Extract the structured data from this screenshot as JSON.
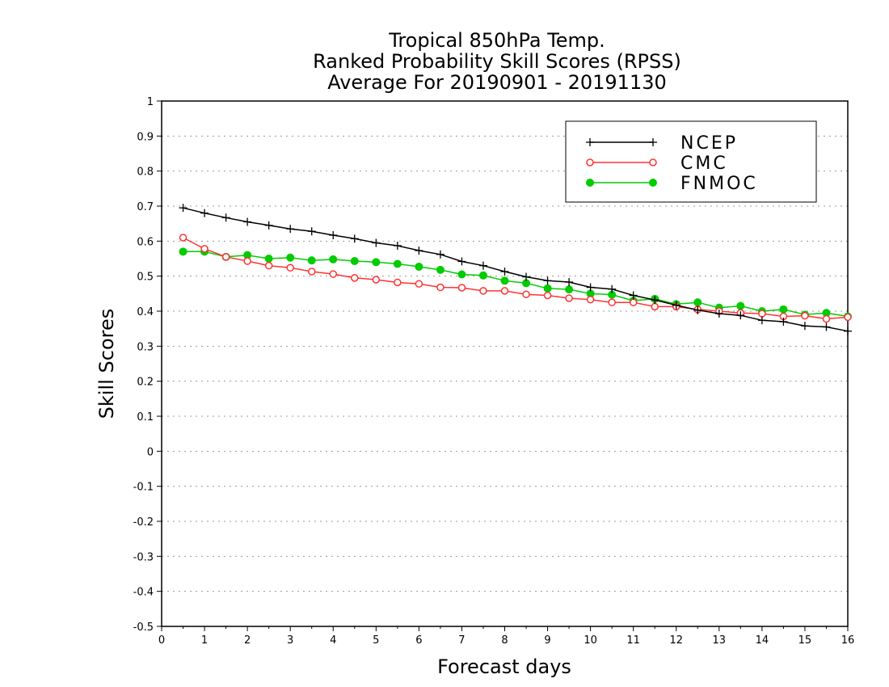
{
  "chart_data": {
    "type": "line",
    "title_lines": [
      "Tropical 850hPa Temp.",
      "Ranked Probability Skill Scores (RPSS)",
      "Average For 20190901 - 20191130"
    ],
    "xlabel": "Forecast days",
    "ylabel": "Skill Scores",
    "xlim": [
      0,
      16
    ],
    "ylim": [
      -0.5,
      1
    ],
    "x_ticks": [
      "0",
      "1",
      "2",
      "3",
      "4",
      "5",
      "6",
      "7",
      "8",
      "9",
      "10",
      "11",
      "12",
      "13",
      "14",
      "15",
      "16"
    ],
    "y_ticks": [
      "-0.5",
      "-0.4",
      "-0.3",
      "-0.2",
      "-0.1",
      "0",
      "0.1",
      "0.2",
      "0.3",
      "0.4",
      "0.5",
      "0.6",
      "0.7",
      "0.8",
      "0.9",
      "1"
    ],
    "grid": true,
    "legend_position": "top-right",
    "x": [
      0.5,
      1,
      1.5,
      2,
      2.5,
      3,
      3.5,
      4,
      4.5,
      5,
      5.5,
      6,
      6.5,
      7,
      7.5,
      8,
      8.5,
      9,
      9.5,
      10,
      10.5,
      11,
      11.5,
      12,
      12.5,
      13,
      13.5,
      14,
      14.5,
      15,
      15.5,
      16
    ],
    "series": [
      {
        "name": "NCEP",
        "color": "#000000",
        "marker": "plus",
        "values": [
          0.695,
          0.68,
          0.667,
          0.655,
          0.645,
          0.635,
          0.628,
          0.617,
          0.607,
          0.595,
          0.587,
          0.573,
          0.562,
          0.542,
          0.53,
          0.513,
          0.498,
          0.487,
          0.483,
          0.468,
          0.463,
          0.445,
          0.432,
          0.417,
          0.403,
          0.393,
          0.388,
          0.374,
          0.37,
          0.358,
          0.355,
          0.343
        ]
      },
      {
        "name": "CMC",
        "color": "#ff3333",
        "marker": "open-circle",
        "values": [
          0.61,
          0.578,
          0.555,
          0.543,
          0.53,
          0.524,
          0.513,
          0.506,
          0.495,
          0.49,
          0.482,
          0.478,
          0.468,
          0.467,
          0.458,
          0.458,
          0.448,
          0.445,
          0.437,
          0.433,
          0.425,
          0.425,
          0.413,
          0.413,
          0.405,
          0.4,
          0.395,
          0.393,
          0.385,
          0.387,
          0.378,
          0.383
        ]
      },
      {
        "name": "FNMOC",
        "color": "#00cc00",
        "marker": "filled-circle",
        "values": [
          0.57,
          0.57,
          0.555,
          0.56,
          0.55,
          0.553,
          0.545,
          0.548,
          0.543,
          0.54,
          0.535,
          0.527,
          0.518,
          0.505,
          0.502,
          0.487,
          0.48,
          0.465,
          0.462,
          0.45,
          0.447,
          0.43,
          0.435,
          0.42,
          0.425,
          0.41,
          0.415,
          0.4,
          0.405,
          0.39,
          0.395,
          0.385
        ]
      }
    ]
  }
}
